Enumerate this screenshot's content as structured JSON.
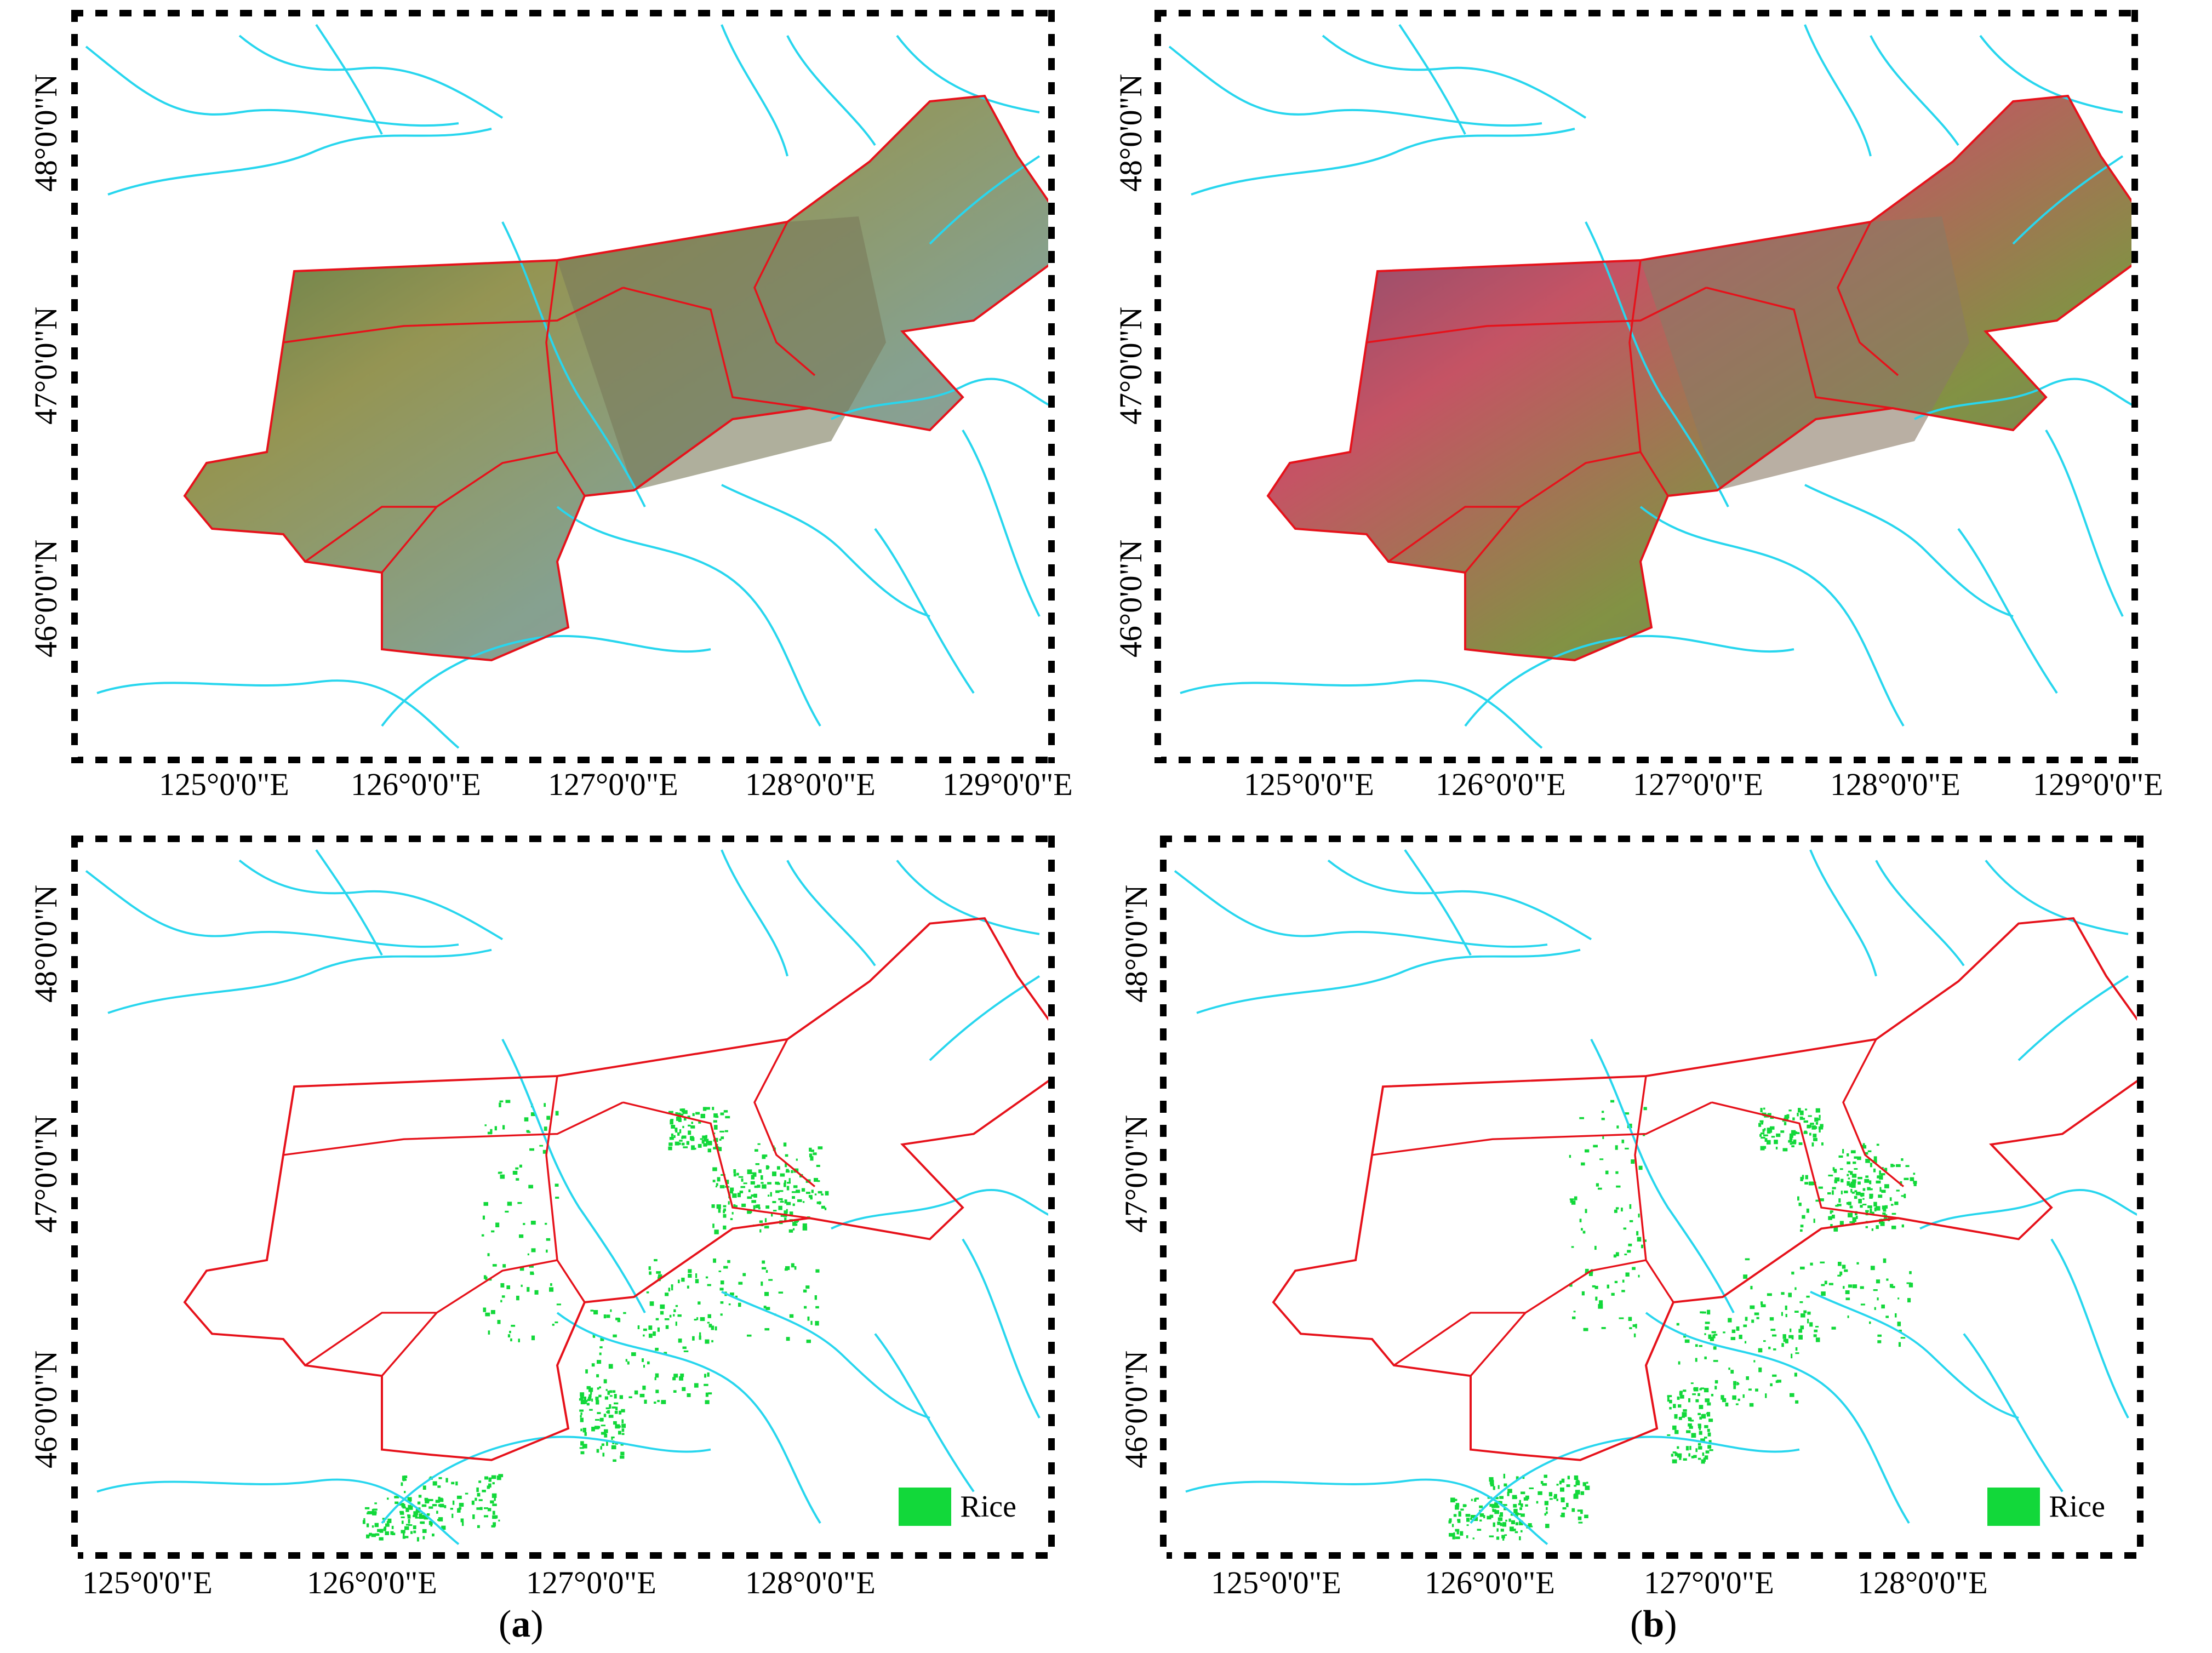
{
  "colors": {
    "river": "#28d6ee",
    "boundary": "#e6121b",
    "rice": "#12d83a",
    "frame": "#000000"
  },
  "panels": [
    {
      "id": "a-top",
      "type": "composite",
      "lon_labels": [
        "125°0'0\"E",
        "126°0'0\"E",
        "127°0'0\"E",
        "128°0'0\"E",
        "129°0'0\"E"
      ],
      "lat_labels": [
        "48°0'0\"N",
        "47°0'0\"N",
        "46°0'0\"N"
      ]
    },
    {
      "id": "b-top",
      "type": "composite",
      "lon_labels": [
        "125°0'0\"E",
        "126°0'0\"E",
        "127°0'0\"E",
        "128°0'0\"E",
        "129°0'0\"E"
      ],
      "lat_labels": [
        "48°0'0\"N",
        "47°0'0\"N",
        "46°0'0\"N"
      ]
    },
    {
      "id": "a-bottom",
      "type": "classification",
      "lon_labels": [
        "125°0'0\"E",
        "126°0'0\"E",
        "127°0'0\"E",
        "128°0'0\"E"
      ],
      "lat_labels": [
        "48°0'0\"N",
        "47°0'0\"N",
        "46°0'0\"N"
      ],
      "legend_label": "Rice"
    },
    {
      "id": "b-bottom",
      "type": "classification",
      "lon_labels": [
        "125°0'0\"E",
        "126°0'0\"E",
        "127°0'0\"E",
        "128°0'0\"E"
      ],
      "lat_labels": [
        "48°0'0\"N",
        "47°0'0\"N",
        "46°0'0\"N"
      ],
      "legend_label": "Rice"
    }
  ],
  "captions": [
    {
      "open": "(",
      "letter": "a",
      "close": ")"
    },
    {
      "open": "(",
      "letter": "b",
      "close": ")"
    }
  ]
}
